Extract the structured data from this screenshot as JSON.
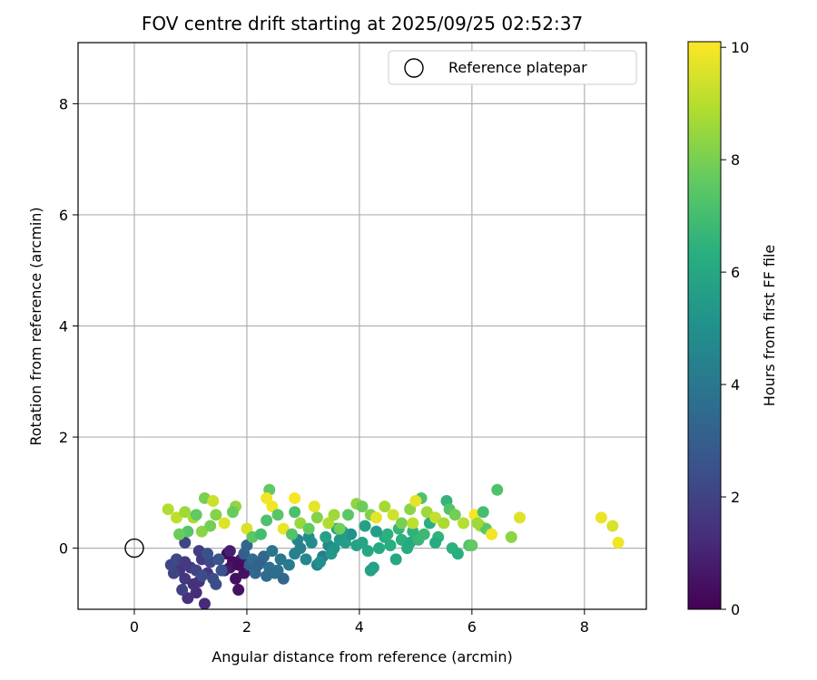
{
  "chart_data": {
    "type": "scatter",
    "title": "FOV centre drift starting at 2025/09/25 02:52:37",
    "xlabel": "Angular distance from reference (arcmin)",
    "ylabel": "Rotation from reference (arcmin)",
    "xlim": [
      -1,
      9.1
    ],
    "ylim": [
      -1.1,
      9.1
    ],
    "xticks": [
      0,
      2,
      4,
      6,
      8
    ],
    "yticks": [
      0,
      2,
      4,
      6,
      8
    ],
    "grid": true,
    "legend": {
      "position": "top-right",
      "entries": [
        "Reference platepar"
      ]
    },
    "reference_point": {
      "x": 0,
      "y": 0,
      "label": "Reference platepar"
    },
    "colorbar": {
      "label": "Hours from first FF file",
      "range": [
        0,
        10.1
      ],
      "ticks": [
        0,
        2,
        4,
        6,
        8,
        10
      ],
      "colormap": "viridis"
    },
    "points": [
      [
        1.65,
        -0.1,
        0.2
      ],
      [
        1.75,
        -0.25,
        0.3
      ],
      [
        1.8,
        -0.55,
        0.4
      ],
      [
        1.85,
        -0.75,
        0.5
      ],
      [
        1.7,
        -0.35,
        0.6
      ],
      [
        1.9,
        -0.2,
        0.7
      ],
      [
        1.6,
        -0.4,
        0.8
      ],
      [
        1.95,
        -0.45,
        0.5
      ],
      [
        1.7,
        -0.05,
        0.9
      ],
      [
        1.85,
        -0.3,
        0.3
      ],
      [
        1.25,
        -1.0,
        1.2
      ],
      [
        1.1,
        -0.8,
        1.3
      ],
      [
        0.95,
        -0.9,
        1.4
      ],
      [
        1.15,
        -0.6,
        1.5
      ],
      [
        0.9,
        -0.55,
        1.6
      ],
      [
        1.0,
        -0.35,
        1.7
      ],
      [
        1.2,
        -0.2,
        1.8
      ],
      [
        1.3,
        -0.45,
        1.6
      ],
      [
        0.8,
        -0.4,
        1.5
      ],
      [
        1.05,
        -0.65,
        1.4
      ],
      [
        0.85,
        -0.75,
        1.9
      ],
      [
        0.7,
        -0.45,
        2.0
      ],
      [
        0.65,
        -0.3,
        2.1
      ],
      [
        0.75,
        -0.2,
        2.2
      ],
      [
        0.9,
        -0.25,
        1.7
      ],
      [
        1.1,
        -0.4,
        2.0
      ],
      [
        1.4,
        -0.55,
        2.3
      ],
      [
        1.15,
        -0.05,
        1.8
      ],
      [
        0.9,
        0.1,
        2.1
      ],
      [
        1.35,
        -0.25,
        2.2
      ],
      [
        1.45,
        -0.65,
        2.4
      ],
      [
        1.55,
        -0.4,
        2.6
      ],
      [
        1.3,
        -0.1,
        2.5
      ],
      [
        1.5,
        -0.2,
        2.7
      ],
      [
        1.2,
        -0.5,
        2.3
      ],
      [
        1.95,
        -0.1,
        3.0
      ],
      [
        2.05,
        -0.3,
        3.2
      ],
      [
        2.15,
        -0.45,
        3.4
      ],
      [
        2.25,
        -0.25,
        3.1
      ],
      [
        2.35,
        -0.5,
        3.5
      ],
      [
        2.0,
        0.05,
        3.3
      ],
      [
        2.1,
        -0.2,
        3.6
      ],
      [
        2.4,
        -0.35,
        3.7
      ],
      [
        2.55,
        -0.4,
        3.8
      ],
      [
        2.3,
        -0.15,
        3.3
      ],
      [
        2.45,
        -0.05,
        3.9
      ],
      [
        2.6,
        -0.2,
        4.0
      ],
      [
        2.5,
        -0.45,
        3.6
      ],
      [
        2.65,
        -0.55,
        3.4
      ],
      [
        2.2,
        -0.3,
        3.2
      ],
      [
        2.75,
        -0.3,
        4.1
      ],
      [
        2.85,
        -0.1,
        4.3
      ],
      [
        2.95,
        0.0,
        4.4
      ],
      [
        3.05,
        -0.2,
        4.6
      ],
      [
        3.15,
        0.1,
        4.8
      ],
      [
        3.25,
        -0.3,
        4.5
      ],
      [
        3.35,
        -0.15,
        4.2
      ],
      [
        3.45,
        0.05,
        4.7
      ],
      [
        3.1,
        0.2,
        4.9
      ],
      [
        2.9,
        0.15,
        4.5
      ],
      [
        3.55,
        0.0,
        5.2
      ],
      [
        3.65,
        0.15,
        5.4
      ],
      [
        3.75,
        0.1,
        5.6
      ],
      [
        3.85,
        0.25,
        5.1
      ],
      [
        3.95,
        0.05,
        5.8
      ],
      [
        3.3,
        -0.25,
        5.0
      ],
      [
        3.5,
        -0.1,
        5.3
      ],
      [
        3.7,
        0.3,
        5.5
      ],
      [
        3.4,
        0.2,
        5.7
      ],
      [
        3.6,
        0.35,
        5.9
      ],
      [
        4.05,
        0.1,
        5.9
      ],
      [
        4.15,
        -0.05,
        6.0
      ],
      [
        4.25,
        -0.35,
        5.8
      ],
      [
        4.35,
        0.0,
        6.1
      ],
      [
        4.45,
        0.2,
        6.2
      ],
      [
        4.55,
        0.05,
        6.3
      ],
      [
        4.65,
        -0.2,
        6.0
      ],
      [
        4.75,
        0.15,
        6.4
      ],
      [
        4.85,
        0.0,
        6.2
      ],
      [
        4.95,
        0.3,
        6.5
      ],
      [
        4.1,
        0.4,
        5.7
      ],
      [
        4.3,
        0.3,
        5.6
      ],
      [
        4.5,
        0.25,
        6.4
      ],
      [
        4.7,
        0.35,
        6.6
      ],
      [
        4.9,
        0.1,
        6.1
      ],
      [
        5.05,
        0.15,
        6.7
      ],
      [
        5.15,
        0.25,
        6.8
      ],
      [
        5.25,
        0.45,
        6.3
      ],
      [
        5.4,
        0.2,
        6.5
      ],
      [
        5.55,
        0.85,
        6.6
      ],
      [
        5.65,
        0.0,
        6.4
      ],
      [
        5.75,
        -0.1,
        6.3
      ],
      [
        5.95,
        0.05,
        7.2
      ],
      [
        5.35,
        0.1,
        6.2
      ],
      [
        4.2,
        -0.4,
        5.8
      ],
      [
        0.6,
        0.7,
        8.9
      ],
      [
        0.75,
        0.55,
        9.1
      ],
      [
        0.9,
        0.65,
        8.6
      ],
      [
        1.05,
        0.55,
        8.8
      ],
      [
        1.2,
        0.3,
        8.3
      ],
      [
        1.35,
        0.4,
        7.9
      ],
      [
        1.45,
        0.6,
        8.2
      ],
      [
        1.6,
        0.45,
        9.6
      ],
      [
        1.8,
        0.75,
        8.4
      ],
      [
        1.25,
        0.9,
        8.0
      ],
      [
        1.1,
        0.6,
        7.6
      ],
      [
        0.95,
        0.3,
        7.4
      ],
      [
        0.8,
        0.25,
        7.8
      ],
      [
        1.4,
        0.85,
        9.3
      ],
      [
        1.75,
        0.65,
        7.7
      ],
      [
        2.0,
        0.35,
        9.5
      ],
      [
        2.1,
        0.2,
        7.5
      ],
      [
        2.25,
        0.25,
        7.0
      ],
      [
        2.35,
        0.5,
        7.2
      ],
      [
        2.4,
        1.05,
        7.6
      ],
      [
        2.45,
        0.75,
        9.9
      ],
      [
        2.55,
        0.6,
        7.4
      ],
      [
        2.65,
        0.35,
        9.8
      ],
      [
        2.8,
        0.25,
        7.3
      ],
      [
        2.85,
        0.65,
        7.1
      ],
      [
        2.95,
        0.45,
        8.5
      ],
      [
        3.1,
        0.35,
        7.6
      ],
      [
        3.25,
        0.55,
        8.2
      ],
      [
        3.45,
        0.45,
        8.9
      ],
      [
        3.55,
        0.6,
        8.6
      ],
      [
        3.65,
        0.35,
        7.9
      ],
      [
        3.8,
        0.6,
        7.5
      ],
      [
        3.95,
        0.8,
        8.4
      ],
      [
        4.05,
        0.75,
        7.8
      ],
      [
        4.2,
        0.6,
        8.1
      ],
      [
        4.3,
        0.55,
        9.7
      ],
      [
        4.45,
        0.75,
        8.7
      ],
      [
        4.6,
        0.6,
        9.4
      ],
      [
        4.75,
        0.45,
        8.0
      ],
      [
        4.9,
        0.7,
        8.3
      ],
      [
        5.1,
        0.9,
        7.2
      ],
      [
        5.2,
        0.65,
        8.6
      ],
      [
        5.35,
        0.55,
        9.2
      ],
      [
        5.5,
        0.45,
        8.8
      ],
      [
        5.6,
        0.7,
        7.3
      ],
      [
        5.7,
        0.6,
        7.9
      ],
      [
        5.85,
        0.45,
        9.0
      ],
      [
        6.05,
        0.6,
        10.0
      ],
      [
        6.15,
        0.4,
        8.7
      ],
      [
        6.25,
        0.35,
        7.5
      ],
      [
        6.35,
        0.25,
        9.9
      ],
      [
        6.45,
        1.05,
        7.2
      ],
      [
        6.7,
        0.2,
        8.3
      ],
      [
        6.85,
        0.55,
        9.6
      ],
      [
        8.3,
        0.55,
        9.8
      ],
      [
        8.5,
        0.4,
        9.5
      ],
      [
        8.6,
        0.1,
        9.9
      ],
      [
        5.0,
        0.85,
        9.7
      ],
      [
        2.85,
        0.9,
        10.0
      ],
      [
        3.2,
        0.75,
        9.7
      ],
      [
        2.35,
        0.9,
        9.9
      ],
      [
        4.95,
        0.45,
        9.1
      ],
      [
        6.1,
        0.45,
        8.6
      ],
      [
        6.2,
        0.65,
        7.0
      ],
      [
        6.0,
        0.05,
        7.6
      ]
    ]
  }
}
